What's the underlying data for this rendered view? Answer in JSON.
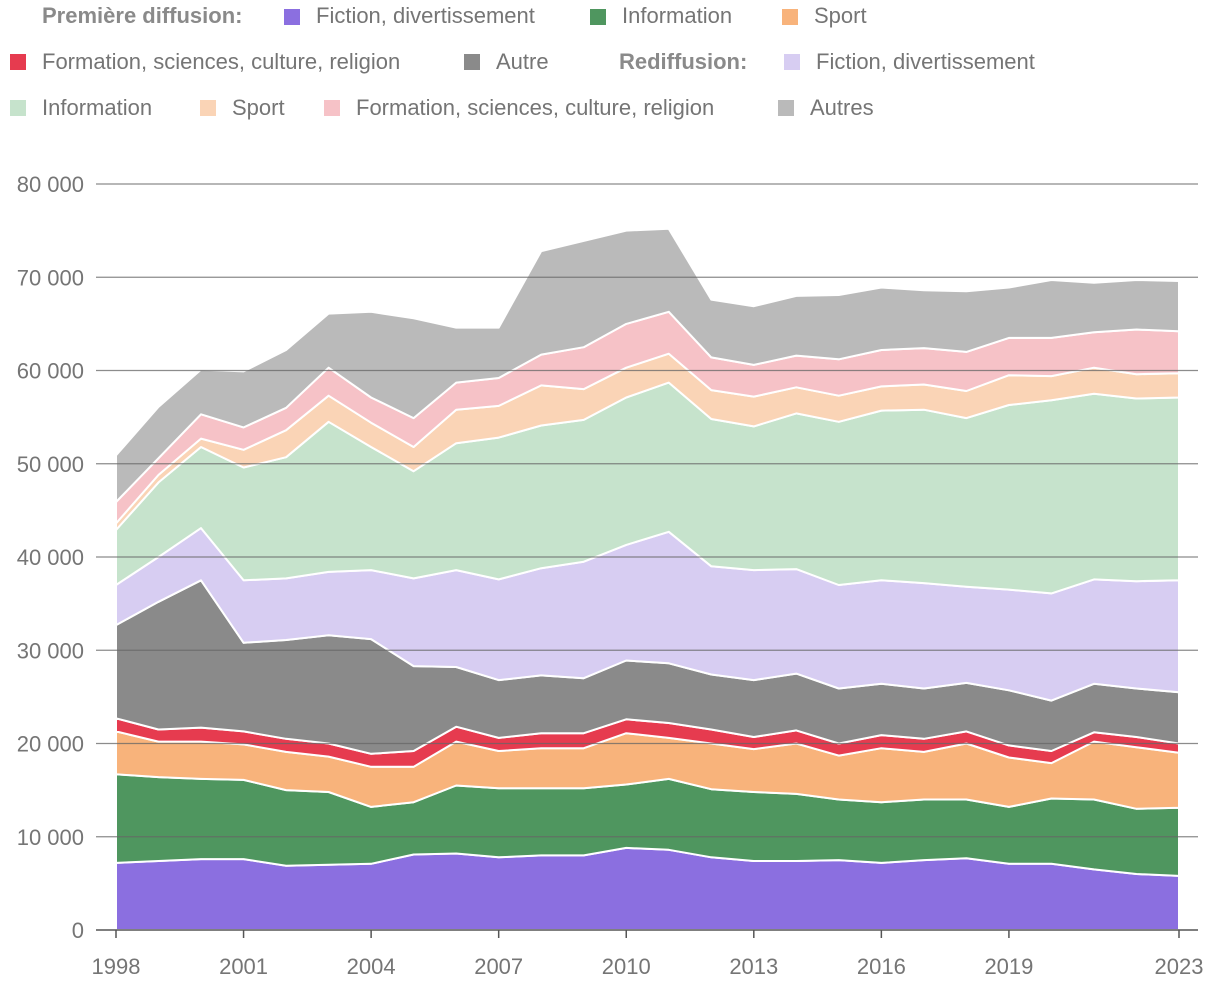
{
  "chart_data": {
    "type": "area",
    "stacked": true,
    "title": "",
    "xlabel": "",
    "ylabel": "",
    "x": [
      1998,
      1999,
      2000,
      2001,
      2002,
      2003,
      2004,
      2005,
      2006,
      2007,
      2008,
      2009,
      2010,
      2011,
      2012,
      2013,
      2014,
      2015,
      2016,
      2017,
      2018,
      2019,
      2020,
      2021,
      2022,
      2023
    ],
    "ylim": [
      0,
      80000
    ],
    "y_ticks": [
      0,
      10000,
      20000,
      30000,
      40000,
      50000,
      60000,
      70000,
      80000
    ],
    "y_tick_labels": [
      "0",
      "10 000",
      "20 000",
      "30 000",
      "40 000",
      "50 000",
      "60 000",
      "70 000",
      "80 000"
    ],
    "x_ticks": [
      1998,
      2001,
      2004,
      2007,
      2010,
      2013,
      2016,
      2019,
      2023
    ],
    "x_tick_labels": [
      "1998",
      "2001",
      "2004",
      "2007",
      "2010",
      "2013",
      "2016",
      "2019",
      "2023"
    ],
    "grid": true,
    "legend_position": "top",
    "legend_groups": [
      "Première diffusion:",
      "Rediffusion:"
    ],
    "series": [
      {
        "name": "Fiction, divertissement",
        "group": "Première diffusion:",
        "color": "#8b6fe0",
        "values": [
          7200,
          7400,
          7600,
          7600,
          6900,
          7000,
          7100,
          8100,
          8200,
          7800,
          8000,
          8000,
          8800,
          8600,
          7800,
          7400,
          7400,
          7500,
          7200,
          7500,
          7700,
          7100,
          7100,
          6500,
          6000,
          5800
        ]
      },
      {
        "name": "Information",
        "group": "Première diffusion:",
        "color": "#4f965f",
        "values": [
          9500,
          9000,
          8600,
          8500,
          8100,
          7800,
          6100,
          5600,
          7300,
          7400,
          7200,
          7200,
          6800,
          7600,
          7300,
          7400,
          7200,
          6500,
          6500,
          6500,
          6300,
          6100,
          7000,
          7500,
          7000,
          7300
        ]
      },
      {
        "name": "Sport",
        "group": "Première diffusion:",
        "color": "#f8b37b",
        "values": [
          4600,
          3800,
          4000,
          3800,
          4100,
          3800,
          4300,
          3800,
          4700,
          4000,
          4300,
          4300,
          5500,
          4400,
          4900,
          4600,
          5400,
          4700,
          5800,
          5100,
          6000,
          5300,
          3800,
          6200,
          6600,
          5900
        ]
      },
      {
        "name": "Formation, sciences, culture, religion",
        "group": "Première diffusion:",
        "color": "#e63b4f",
        "values": [
          1400,
          1300,
          1500,
          1400,
          1400,
          1400,
          1400,
          1700,
          1600,
          1400,
          1600,
          1600,
          1500,
          1600,
          1500,
          1300,
          1400,
          1300,
          1400,
          1400,
          1300,
          1300,
          1300,
          1000,
          1100,
          1000
        ]
      },
      {
        "name": "Autre",
        "group": "Première diffusion:",
        "color": "#8a8a8a",
        "values": [
          10000,
          13700,
          15800,
          9500,
          10600,
          11600,
          12300,
          9100,
          6400,
          6200,
          6200,
          5900,
          6300,
          6400,
          5900,
          6100,
          6100,
          5900,
          5500,
          5400,
          5200,
          5900,
          5400,
          5200,
          5200,
          5500
        ]
      },
      {
        "name": "Fiction, divertissement",
        "group": "Rediffusion:",
        "color": "#d7cdf2",
        "values": [
          4300,
          4800,
          5600,
          6700,
          6600,
          6800,
          7400,
          9400,
          10400,
          10800,
          11500,
          12500,
          12400,
          14100,
          11600,
          11800,
          11200,
          11100,
          11100,
          11300,
          10300,
          10800,
          11500,
          11200,
          11500,
          12000
        ]
      },
      {
        "name": "Information",
        "group": "Rediffusion:",
        "color": "#c6e3cc",
        "values": [
          5900,
          8000,
          8700,
          12100,
          13000,
          16100,
          13200,
          11500,
          13600,
          15200,
          15300,
          15200,
          15800,
          16000,
          15800,
          15400,
          16700,
          17500,
          18200,
          18600,
          18100,
          19800,
          20700,
          19900,
          19600,
          19600
        ]
      },
      {
        "name": "Sport",
        "group": "Rediffusion:",
        "color": "#fad4b6",
        "values": [
          700,
          800,
          900,
          1900,
          2900,
          2800,
          2600,
          2600,
          3600,
          3400,
          4300,
          3300,
          3200,
          3100,
          3100,
          3200,
          2800,
          2800,
          2600,
          2700,
          2900,
          3200,
          2600,
          2800,
          2600,
          2600
        ]
      },
      {
        "name": "Formation, sciences, culture, religion",
        "group": "Rediffusion:",
        "color": "#f6c2c7",
        "values": [
          2300,
          1800,
          2600,
          2400,
          2400,
          3000,
          2700,
          3100,
          2900,
          3000,
          3300,
          4500,
          4700,
          4500,
          3500,
          3400,
          3400,
          3900,
          3900,
          3900,
          4200,
          4000,
          4100,
          3800,
          4800,
          4500
        ]
      },
      {
        "name": "Autres",
        "group": "Rediffusion:",
        "color": "#bababa",
        "values": [
          5000,
          5500,
          4800,
          6000,
          6200,
          5800,
          9200,
          10700,
          5900,
          5400,
          11100,
          11400,
          10000,
          8900,
          6200,
          6300,
          6400,
          6900,
          6700,
          6200,
          6500,
          5400,
          6200,
          5300,
          5300,
          5400
        ]
      }
    ]
  }
}
